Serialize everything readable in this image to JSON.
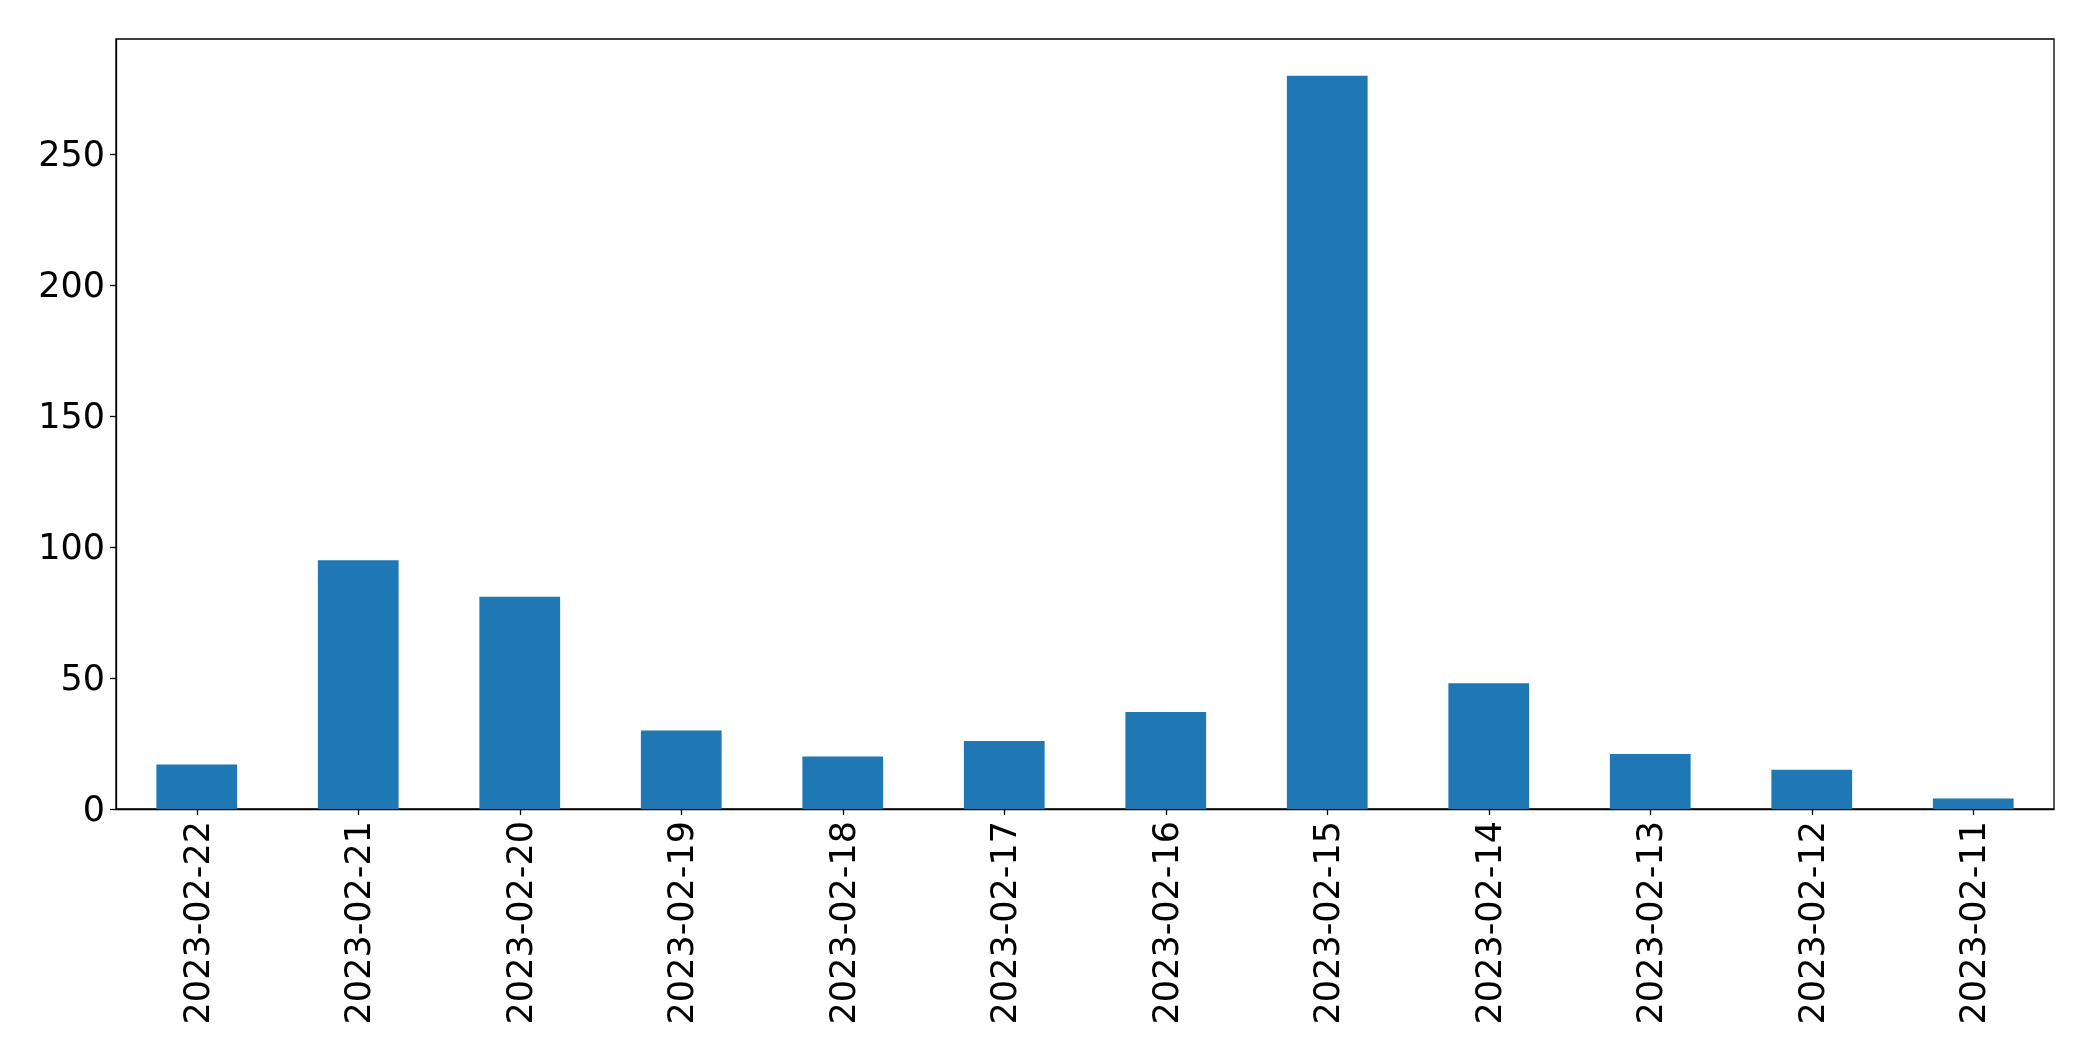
{
  "chart_data": {
    "type": "bar",
    "categories": [
      "2023-02-22",
      "2023-02-21",
      "2023-02-20",
      "2023-02-19",
      "2023-02-18",
      "2023-02-17",
      "2023-02-16",
      "2023-02-15",
      "2023-02-14",
      "2023-02-13",
      "2023-02-12",
      "2023-02-11"
    ],
    "values": [
      17,
      95,
      81,
      30,
      20,
      26,
      37,
      280,
      48,
      21,
      15,
      4
    ],
    "color": "#1f77b4",
    "ylim": [
      0,
      294
    ],
    "yticks": [
      0,
      50,
      100,
      150,
      200,
      250
    ],
    "grid": false
  }
}
